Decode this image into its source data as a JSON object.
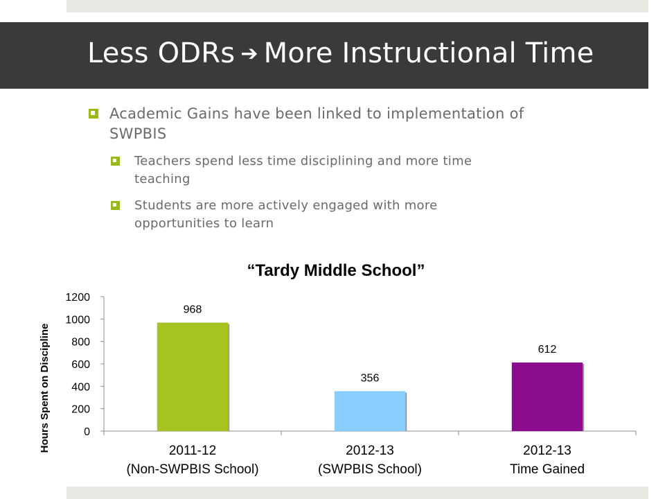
{
  "slide": {
    "title_left": "Less ODRs",
    "title_arrow": "➔",
    "title_right": "More Instructional Time"
  },
  "bullets": [
    {
      "level": 1,
      "text": "Academic Gains have been linked to implementation of",
      "text2": "SWPBIS"
    },
    {
      "level": 2,
      "text": "Teachers spend less time disciplining and more time",
      "text2": "teaching"
    },
    {
      "level": 2,
      "text": "Students are more actively engaged with more",
      "text2": "opportunities to learn"
    }
  ],
  "chart_data": {
    "type": "bar",
    "title": "“Tardy Middle School”",
    "ylabel": "Hours Spent on Discipline",
    "xlabel": "",
    "ylim": [
      0,
      1200
    ],
    "yticks": [
      0,
      200,
      400,
      600,
      800,
      1000,
      1200
    ],
    "grid": false,
    "legend": "none",
    "categories": [
      [
        "2011-12",
        "(Non-SWPBIS School)"
      ],
      [
        "2012-13",
        "(SWPBIS School)"
      ],
      [
        "2012-13",
        "Time Gained"
      ]
    ],
    "values": [
      968,
      356,
      612
    ],
    "colors": [
      "#a5c41f",
      "#87ceff",
      "#8b0d8e"
    ]
  }
}
